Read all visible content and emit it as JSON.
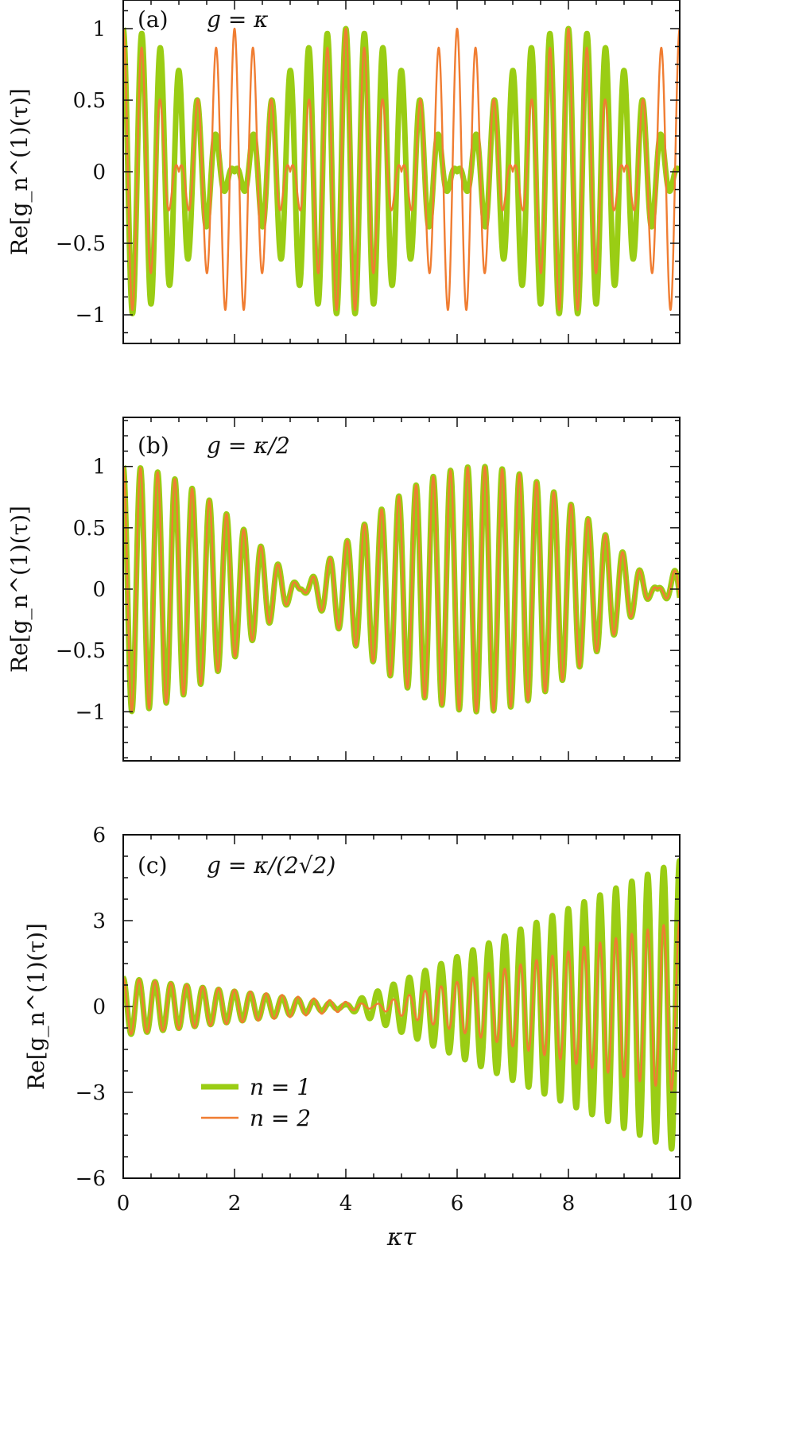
{
  "chart_data": [
    {
      "id": "a",
      "type": "line",
      "panel_label": "(a)",
      "annotation": "g = κ",
      "ylabel": "Re[g_n^(1)(τ)]",
      "xlabel": "",
      "xlim": [
        0,
        10
      ],
      "ylim": [
        -1.2,
        1.2
      ],
      "x_ticks": [
        0,
        2,
        4,
        6,
        8,
        10
      ],
      "y_ticks": [
        -1,
        -0.5,
        0,
        0.5,
        1
      ],
      "y_tick_labels": [
        "−1",
        "−0.5",
        "0",
        "0.5",
        "1"
      ],
      "series": [
        {
          "name": "n = 1",
          "color": "#9acd14",
          "omega": 18.85,
          "amp_model": "abs_cos",
          "beat": 0.7854,
          "growth": 0
        },
        {
          "name": "n = 2",
          "color": "#f07d32",
          "omega": 18.85,
          "amp_model": "abs_cos",
          "beat": 1.5708,
          "growth": 0
        }
      ]
    },
    {
      "id": "b",
      "type": "line",
      "panel_label": "(b)",
      "annotation": "g = κ/2",
      "ylabel": "Re[g_n^(1)(τ)]",
      "xlabel": "",
      "xlim": [
        0,
        10
      ],
      "ylim": [
        -1.4,
        1.4
      ],
      "x_ticks": [
        0,
        2,
        4,
        6,
        8,
        10
      ],
      "y_ticks": [
        -1,
        -0.5,
        0,
        0.5,
        1
      ],
      "y_tick_labels": [
        "−1",
        "−0.5",
        "0",
        "0.5",
        "1"
      ],
      "series": [
        {
          "name": "n = 1",
          "color": "#9acd14",
          "omega": 20.3,
          "amp_model": "abs_cos",
          "beat": 0.4909,
          "growth": 0
        },
        {
          "name": "n = 2",
          "color": "#f07d32",
          "omega": 20.3,
          "amp_model": "abs_cos",
          "beat": 0.4909,
          "growth": 0
        }
      ]
    },
    {
      "id": "c",
      "type": "line",
      "panel_label": "(c)",
      "annotation": "g = κ/(2√2)",
      "ylabel": "Re[g_n^(1)(τ)]",
      "xlabel": "κτ",
      "xlim": [
        0,
        10
      ],
      "ylim": [
        -6,
        6
      ],
      "x_ticks": [
        0,
        2,
        4,
        6,
        8,
        10
      ],
      "x_tick_labels": [
        "0",
        "2",
        "4",
        "6",
        "8",
        "10"
      ],
      "y_ticks": [
        -6,
        -3,
        0,
        3,
        6
      ],
      "y_tick_labels": [
        "−6",
        "−3",
        "0",
        "3",
        "6"
      ],
      "series": [
        {
          "name": "n = 1",
          "color": "#9acd14",
          "omega": 22.0,
          "amp_model": "linear_growth",
          "min_x": 4.0,
          "end_amp": 5.1
        },
        {
          "name": "n = 2",
          "color": "#f07d32",
          "omega": 22.0,
          "amp_model": "linear_growth",
          "min_x": 4.5,
          "end_amp": 3.0
        }
      ]
    }
  ],
  "legend": {
    "entries": [
      {
        "label": "n = 1",
        "color": "#9acd14"
      },
      {
        "label": "n = 2",
        "color": "#f07d32"
      }
    ],
    "placement": "bottom-left of panel (c)"
  }
}
